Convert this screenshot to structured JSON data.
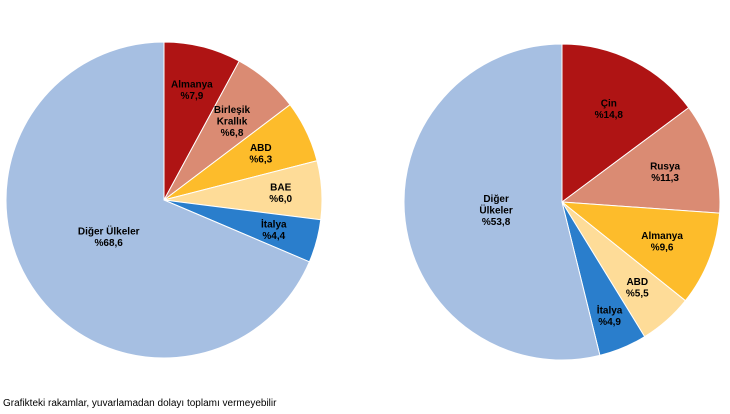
{
  "chart_data": [
    {
      "type": "pie",
      "title": "",
      "slices": [
        {
          "lines": [
            "Almanya",
            "%7,9"
          ],
          "value": 7.9,
          "color": "#AF1414"
        },
        {
          "lines": [
            "Birleşik",
            "Krallık",
            "%6,8"
          ],
          "value": 6.8,
          "color": "#DA8B73"
        },
        {
          "lines": [
            "ABD",
            "%6,3"
          ],
          "value": 6.3,
          "color": "#FDBC2B"
        },
        {
          "lines": [
            "BAE",
            "%6,0"
          ],
          "value": 6.0,
          "color": "#FEDC98"
        },
        {
          "lines": [
            "İtalya",
            "%4,4"
          ],
          "value": 4.4,
          "color": "#2A7ECC"
        },
        {
          "lines": [
            "Diğer Ülkeler",
            "%68,6"
          ],
          "value": 68.6,
          "color": "#A6BFE2"
        }
      ]
    },
    {
      "type": "pie",
      "title": "",
      "slices": [
        {
          "lines": [
            "Çin",
            "%14,8"
          ],
          "value": 14.8,
          "color": "#AF1414"
        },
        {
          "lines": [
            "Rusya",
            "%11,3"
          ],
          "value": 11.3,
          "color": "#DA8B73"
        },
        {
          "lines": [
            "Almanya",
            "%9,6"
          ],
          "value": 9.6,
          "color": "#FDBC2B"
        },
        {
          "lines": [
            "ABD",
            "%5,5"
          ],
          "value": 5.5,
          "color": "#FEDC98"
        },
        {
          "lines": [
            "İtalya",
            "%4,9"
          ],
          "value": 4.9,
          "color": "#2A7ECC"
        },
        {
          "lines": [
            "Diğer",
            "Ülkeler",
            "%53,8"
          ],
          "value": 53.8,
          "color": "#A6BFE2"
        }
      ]
    }
  ],
  "footnote": "Grafikteki rakamlar, yuvarlamadan dolayı toplamı vermeyebilir"
}
